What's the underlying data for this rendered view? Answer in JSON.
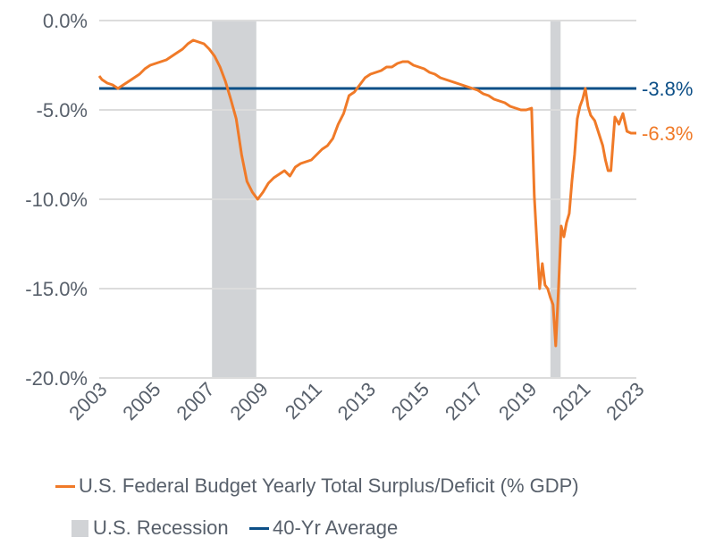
{
  "chart_data": {
    "type": "line",
    "title": "",
    "xlabel": "",
    "ylabel": "",
    "xlim": [
      2003,
      2023
    ],
    "ylim": [
      -20,
      0
    ],
    "grid": true,
    "y_ticks": [
      0,
      -5,
      -10,
      -15,
      -20
    ],
    "y_tick_labels": [
      "0.0%",
      "-5.0%",
      "-10.0%",
      "-15.0%",
      "-20.0%"
    ],
    "x_ticks": [
      2003,
      2005,
      2007,
      2009,
      2011,
      2013,
      2015,
      2017,
      2019,
      2021,
      2023
    ],
    "x_tick_labels": [
      "2003",
      "2005",
      "2007",
      "2009",
      "2011",
      "2013",
      "2015",
      "2017",
      "2019",
      "2021",
      "2023"
    ],
    "legend_position": "bottom",
    "series": [
      {
        "name": "U.S. Federal Budget Yearly Total Surplus/Deficit (% GDP)",
        "color": "#f07a28",
        "end_label": "-6.3%",
        "x": [
          2003.0,
          2003.1,
          2003.3,
          2003.5,
          2003.7,
          2003.9,
          2004.1,
          2004.3,
          2004.5,
          2004.7,
          2004.9,
          2005.1,
          2005.3,
          2005.5,
          2005.7,
          2005.9,
          2006.1,
          2006.3,
          2006.5,
          2006.7,
          2006.9,
          2007.1,
          2007.3,
          2007.5,
          2007.7,
          2007.9,
          2008.1,
          2008.3,
          2008.5,
          2008.7,
          2008.9,
          2009.1,
          2009.3,
          2009.5,
          2009.7,
          2009.9,
          2010.1,
          2010.3,
          2010.5,
          2010.7,
          2010.9,
          2011.1,
          2011.3,
          2011.5,
          2011.7,
          2011.9,
          2012.1,
          2012.3,
          2012.5,
          2012.7,
          2012.9,
          2013.1,
          2013.3,
          2013.5,
          2013.7,
          2013.9,
          2014.1,
          2014.3,
          2014.5,
          2014.7,
          2014.9,
          2015.1,
          2015.3,
          2015.5,
          2015.7,
          2015.9,
          2016.1,
          2016.3,
          2016.5,
          2016.7,
          2016.9,
          2017.1,
          2017.3,
          2017.5,
          2017.7,
          2017.9,
          2018.1,
          2018.3,
          2018.5,
          2018.7,
          2018.9,
          2019.1,
          2019.2,
          2019.3,
          2019.4,
          2019.5,
          2019.6,
          2019.7,
          2019.8,
          2019.9,
          2020.0,
          2020.1,
          2020.2,
          2020.3,
          2020.4,
          2020.5,
          2020.6,
          2020.7,
          2020.8,
          2020.9,
          2021.0,
          2021.1,
          2021.2,
          2021.3,
          2021.45,
          2021.6,
          2021.75,
          2021.85,
          2021.95,
          2022.05,
          2022.2,
          2022.35,
          2022.5,
          2022.65,
          2022.8,
          2022.9,
          2022.95,
          2023.0
        ],
        "values": [
          -3.1,
          -3.3,
          -3.5,
          -3.6,
          -3.8,
          -3.6,
          -3.4,
          -3.2,
          -3.0,
          -2.7,
          -2.5,
          -2.4,
          -2.3,
          -2.2,
          -2.0,
          -1.8,
          -1.6,
          -1.3,
          -1.1,
          -1.2,
          -1.3,
          -1.6,
          -2.0,
          -2.6,
          -3.4,
          -4.4,
          -5.5,
          -7.5,
          -9.0,
          -9.6,
          -10.0,
          -9.6,
          -9.1,
          -8.8,
          -8.6,
          -8.4,
          -8.7,
          -8.2,
          -8.0,
          -7.9,
          -7.8,
          -7.5,
          -7.2,
          -7.0,
          -6.6,
          -5.8,
          -5.2,
          -4.2,
          -4.0,
          -3.6,
          -3.2,
          -3.0,
          -2.9,
          -2.8,
          -2.6,
          -2.6,
          -2.4,
          -2.3,
          -2.3,
          -2.5,
          -2.6,
          -2.7,
          -2.9,
          -3.0,
          -3.2,
          -3.3,
          -3.4,
          -3.5,
          -3.6,
          -3.7,
          -3.8,
          -3.9,
          -4.1,
          -4.2,
          -4.4,
          -4.5,
          -4.6,
          -4.8,
          -4.9,
          -5.0,
          -5.0,
          -4.9,
          -9.8,
          -12.5,
          -15.0,
          -13.6,
          -14.8,
          -15.0,
          -15.5,
          -15.9,
          -18.2,
          -15.0,
          -11.5,
          -12.1,
          -11.3,
          -10.8,
          -9.0,
          -7.5,
          -5.5,
          -4.8,
          -4.4,
          -3.8,
          -4.8,
          -5.3,
          -5.6,
          -6.3,
          -7.0,
          -7.8,
          -8.4,
          -8.4,
          -5.4,
          -5.8,
          -5.2,
          -6.2,
          -6.3,
          -6.3,
          -6.3,
          -6.3
        ]
      },
      {
        "name": "40-Yr Average",
        "color": "#0c4f87",
        "end_label": "-3.8%",
        "constant": -3.8
      }
    ],
    "shaded_regions": [
      {
        "name": "U.S. Recession",
        "color": "#d1d3d6",
        "x_start": 2007.2,
        "x_end": 2008.85
      },
      {
        "name": "U.S. Recession",
        "color": "#d1d3d6",
        "x_start": 2019.8,
        "x_end": 2020.18
      }
    ]
  },
  "legend": {
    "items": [
      {
        "label": "U.S. Federal Budget Yearly Total Surplus/Deficit (% GDP)",
        "color": "#f07a28",
        "kind": "line"
      },
      {
        "label": "U.S. Recession",
        "color": "#d1d3d6",
        "kind": "box"
      },
      {
        "label": "40-Yr Average",
        "color": "#0c4f87",
        "kind": "line"
      }
    ]
  }
}
